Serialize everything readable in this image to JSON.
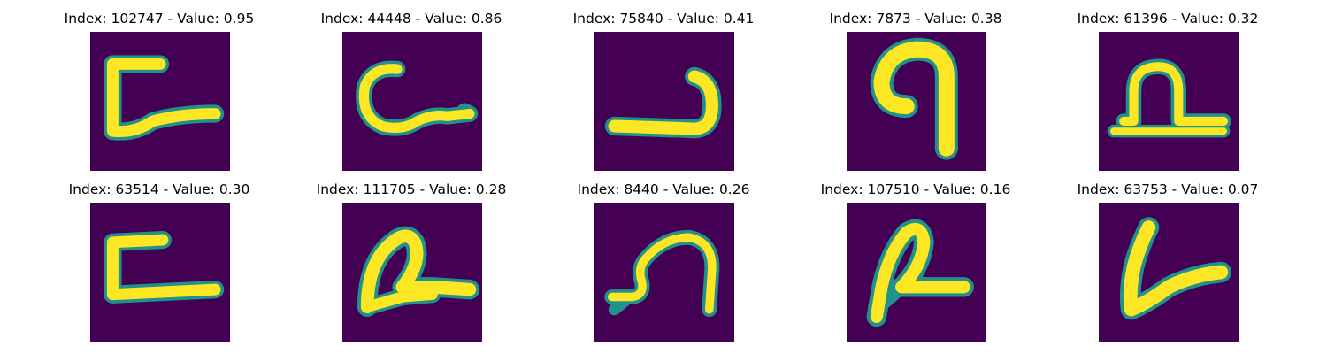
{
  "figure": {
    "panels": [
      {
        "index": "102747",
        "value": "0.95",
        "title": "Index: 102747 - Value: 0.95",
        "glyph": "hook-c-with-tail"
      },
      {
        "index": "44448",
        "value": "0.86",
        "title": "Index: 44448 - Value: 0.86",
        "glyph": "c-with-tail"
      },
      {
        "index": "75840",
        "value": "0.41",
        "title": "Index: 75840 - Value: 0.41",
        "glyph": "reversed-j"
      },
      {
        "index": "7873",
        "value": "0.38",
        "title": "Index: 7873 - Value: 0.38",
        "glyph": "arch-n"
      },
      {
        "index": "61396",
        "value": "0.32",
        "title": "Index: 61396 - Value: 0.32",
        "glyph": "loop-on-baseline"
      },
      {
        "index": "63514",
        "value": "0.30",
        "title": "Index: 63514 - Value: 0.30",
        "glyph": "square-c"
      },
      {
        "index": "111705",
        "value": "0.28",
        "title": "Index: 111705 - Value: 0.28",
        "glyph": "slanted-loop"
      },
      {
        "index": "8440",
        "value": "0.26",
        "title": "Index: 8440 - Value: 0.26",
        "glyph": "curl-arch"
      },
      {
        "index": "107510",
        "value": "0.16",
        "title": "Index: 107510 - Value: 0.16",
        "glyph": "slanted-r-loop"
      },
      {
        "index": "63753",
        "value": "0.07",
        "title": "Index: 63753 - Value: 0.07",
        "glyph": "v-stroke"
      }
    ],
    "colors": {
      "background": "#440154",
      "stroke_core": "#fde725",
      "stroke_edge": "#21918c",
      "stroke_mid": "#5ec962"
    }
  }
}
